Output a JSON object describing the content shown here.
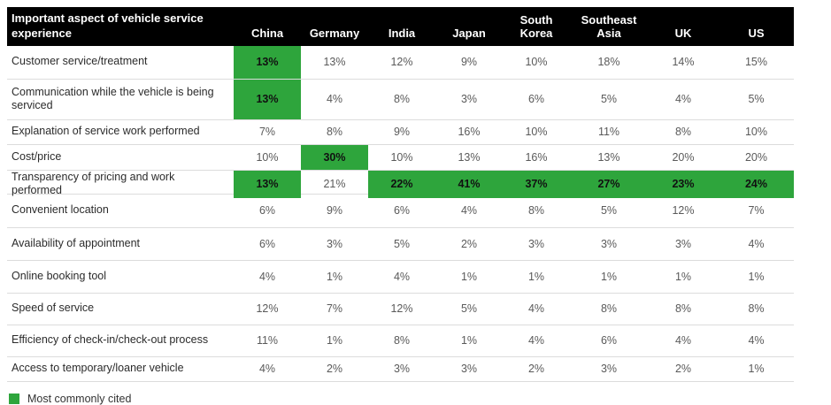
{
  "table": {
    "title": "Important aspect of vehicle service experience",
    "columns": [
      "China",
      "Germany",
      "India",
      "Japan",
      "South Korea",
      "Southeast Asia",
      "UK",
      "US"
    ],
    "rows": [
      {
        "label": "Customer service/treatment",
        "values": [
          "13%",
          "13%",
          "12%",
          "9%",
          "10%",
          "18%",
          "14%",
          "15%"
        ],
        "highlight": [
          0
        ]
      },
      {
        "label": "Communication while the vehicle is being serviced",
        "values": [
          "13%",
          "4%",
          "8%",
          "3%",
          "6%",
          "5%",
          "4%",
          "5%"
        ],
        "highlight": [
          0
        ]
      },
      {
        "label": "Explanation of service work performed",
        "values": [
          "7%",
          "8%",
          "9%",
          "16%",
          "10%",
          "11%",
          "8%",
          "10%"
        ],
        "highlight": []
      },
      {
        "label": "Cost/price",
        "values": [
          "10%",
          "30%",
          "10%",
          "13%",
          "16%",
          "13%",
          "20%",
          "20%"
        ],
        "highlight": [
          1
        ]
      },
      {
        "label": "Transparency of pricing and work performed",
        "values": [
          "13%",
          "21%",
          "22%",
          "41%",
          "37%",
          "27%",
          "23%",
          "24%"
        ],
        "highlight": [
          0,
          2,
          3,
          4,
          5,
          6,
          7
        ]
      },
      {
        "label": "Convenient location",
        "values": [
          "6%",
          "9%",
          "6%",
          "4%",
          "8%",
          "5%",
          "12%",
          "7%"
        ],
        "highlight": []
      },
      {
        "label": "Availability of appointment",
        "values": [
          "6%",
          "3%",
          "5%",
          "2%",
          "3%",
          "3%",
          "3%",
          "4%"
        ],
        "highlight": []
      },
      {
        "label": "Online booking tool",
        "values": [
          "4%",
          "1%",
          "4%",
          "1%",
          "1%",
          "1%",
          "1%",
          "1%"
        ],
        "highlight": []
      },
      {
        "label": "Speed of service",
        "values": [
          "12%",
          "7%",
          "12%",
          "5%",
          "4%",
          "8%",
          "8%",
          "8%"
        ],
        "highlight": []
      },
      {
        "label": "Efficiency of check-in/check-out process",
        "values": [
          "11%",
          "1%",
          "8%",
          "1%",
          "4%",
          "6%",
          "4%",
          "4%"
        ],
        "highlight": []
      },
      {
        "label": "Access to temporary/loaner vehicle",
        "values": [
          "4%",
          "2%",
          "3%",
          "3%",
          "2%",
          "3%",
          "2%",
          "1%"
        ],
        "highlight": []
      }
    ]
  },
  "legend": {
    "label": "Most commonly cited"
  },
  "colors": {
    "highlight_green": "#2ea53c",
    "header_bg": "#000000",
    "header_text": "#ffffff",
    "value_text": "#5a5a5a",
    "row_divider": "#dcdcdc"
  },
  "chart_data": {
    "type": "heatmap",
    "title": "Important aspect of vehicle service experience",
    "columns": [
      "China",
      "Germany",
      "India",
      "Japan",
      "South Korea",
      "Southeast Asia",
      "UK",
      "US"
    ],
    "rows": [
      "Customer service/treatment",
      "Communication while the vehicle is being serviced",
      "Explanation of service work performed",
      "Cost/price",
      "Transparency of pricing and work performed",
      "Convenient location",
      "Availability of appointment",
      "Online booking tool",
      "Speed of service",
      "Efficiency of check-in/check-out process",
      "Access to temporary/loaner vehicle"
    ],
    "values_percent": [
      [
        13,
        13,
        12,
        9,
        10,
        18,
        14,
        15
      ],
      [
        13,
        4,
        8,
        3,
        6,
        5,
        4,
        5
      ],
      [
        7,
        8,
        9,
        16,
        10,
        11,
        8,
        10
      ],
      [
        10,
        30,
        10,
        13,
        16,
        13,
        20,
        20
      ],
      [
        13,
        21,
        22,
        41,
        37,
        27,
        23,
        24
      ],
      [
        6,
        9,
        6,
        4,
        8,
        5,
        12,
        7
      ],
      [
        6,
        3,
        5,
        2,
        3,
        3,
        3,
        4
      ],
      [
        4,
        1,
        4,
        1,
        1,
        1,
        1,
        1
      ],
      [
        12,
        7,
        12,
        5,
        4,
        8,
        8,
        8
      ],
      [
        11,
        1,
        8,
        1,
        4,
        6,
        4,
        4
      ],
      [
        4,
        2,
        3,
        3,
        2,
        3,
        2,
        1
      ]
    ],
    "highlight_meaning": "Most commonly cited",
    "highlighted_cells": [
      {
        "row": "Customer service/treatment",
        "column": "China",
        "value": 13
      },
      {
        "row": "Communication while the vehicle is being serviced",
        "column": "China",
        "value": 13
      },
      {
        "row": "Cost/price",
        "column": "Germany",
        "value": 30
      },
      {
        "row": "Transparency of pricing and work performed",
        "column": "China",
        "value": 13
      },
      {
        "row": "Transparency of pricing and work performed",
        "column": "India",
        "value": 22
      },
      {
        "row": "Transparency of pricing and work performed",
        "column": "Japan",
        "value": 41
      },
      {
        "row": "Transparency of pricing and work performed",
        "column": "South Korea",
        "value": 37
      },
      {
        "row": "Transparency of pricing and work performed",
        "column": "Southeast Asia",
        "value": 27
      },
      {
        "row": "Transparency of pricing and work performed",
        "column": "UK",
        "value": 23
      },
      {
        "row": "Transparency of pricing and work performed",
        "column": "US",
        "value": 24
      }
    ],
    "legend_position": "bottom-left",
    "grid": "horizontal row dividers only"
  }
}
